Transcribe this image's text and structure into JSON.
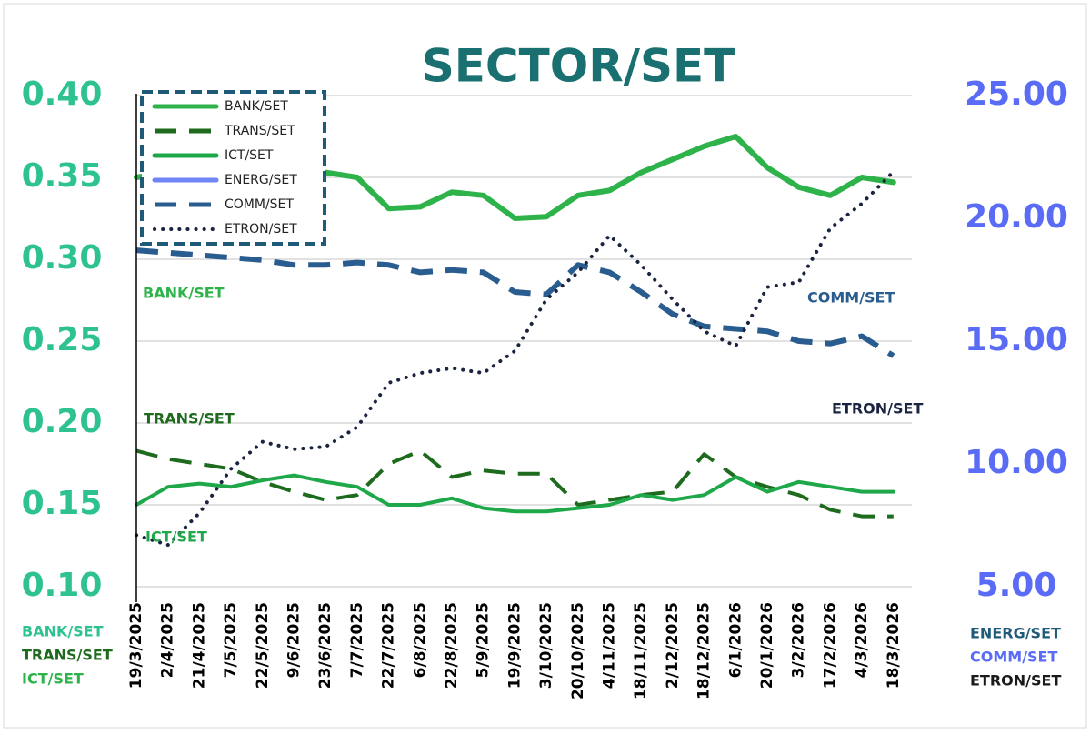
{
  "chart_data": {
    "type": "line",
    "title": "SECTOR/SET",
    "categories": [
      "19/3/2025",
      "2/4/2025",
      "21/4/2025",
      "7/5/2025",
      "22/5/2025",
      "9/6/2025",
      "23/6/2025",
      "7/7/2025",
      "22/7/2025",
      "6/8/2025",
      "22/8/2025",
      "5/9/2025",
      "19/9/2025",
      "3/10/2025",
      "20/10/2025",
      "4/11/2025",
      "18/11/2025",
      "2/12/2025",
      "18/12/2025",
      "6/1/2026",
      "20/1/2026",
      "3/2/2026",
      "17/2/2026",
      "4/3/2026",
      "18/3/2026"
    ],
    "ylim": [
      0.1,
      0.4
    ],
    "yticks": [
      {
        "value": 0.1,
        "label": "0.10"
      },
      {
        "value": 0.15,
        "label": "0.15"
      },
      {
        "value": 0.2,
        "label": "0.20"
      },
      {
        "value": 0.25,
        "label": "0.25"
      },
      {
        "value": 0.3,
        "label": "0.30"
      },
      {
        "value": 0.35,
        "label": "0.35"
      },
      {
        "value": 0.4,
        "label": "0.40"
      }
    ],
    "y2lim": [
      5,
      25
    ],
    "y2ticks": [
      {
        "value": 5,
        "label": "5.00"
      },
      {
        "value": 10,
        "label": "10.00"
      },
      {
        "value": 15,
        "label": "15.00"
      },
      {
        "value": 20,
        "label": "20.00"
      },
      {
        "value": 25,
        "label": "25.00"
      }
    ],
    "grid": true,
    "legend": "top-left",
    "series": [
      {
        "name": "BANK/SET",
        "color": "#2db34a",
        "line_style": "solid",
        "values": [
          0.35,
          0.353,
          0.355,
          0.357,
          0.353,
          0.352,
          0.353,
          0.35,
          0.331,
          0.332,
          0.341,
          0.339,
          0.325,
          0.326,
          0.339,
          0.342,
          0.353,
          0.361,
          0.369,
          0.375,
          0.356,
          0.344,
          0.339,
          0.35,
          0.347
        ]
      },
      {
        "name": "TRANS/SET",
        "color": "#1e6b1e",
        "line_style": "dashed",
        "values": [
          0.183,
          0.178,
          0.175,
          0.172,
          0.164,
          0.158,
          0.153,
          0.156,
          0.175,
          0.183,
          0.167,
          0.171,
          0.169,
          0.169,
          0.15,
          0.153,
          0.156,
          0.158,
          0.181,
          0.167,
          0.161,
          0.156,
          0.147,
          0.143,
          0.143
        ]
      },
      {
        "name": "ICT/SET",
        "color": "#1ea84a",
        "line_style": "solid",
        "values": [
          0.15,
          0.161,
          0.163,
          0.161,
          0.165,
          0.168,
          0.164,
          0.161,
          0.15,
          0.15,
          0.154,
          0.148,
          0.146,
          0.146,
          0.148,
          0.15,
          0.156,
          0.153,
          0.156,
          0.167,
          0.158,
          0.164,
          0.161,
          0.158,
          0.158
        ]
      },
      {
        "name": "ENERG/SET",
        "color": "#6f86f7",
        "line_style": "solid",
        "axis": "y2",
        "values": [
          null,
          null,
          null,
          null,
          null,
          null,
          null,
          null,
          null,
          null,
          null,
          null,
          null,
          null,
          null,
          null,
          null,
          null,
          null,
          null,
          null,
          null,
          null,
          null,
          null
        ]
      },
      {
        "name": "COMM/SET",
        "color": "#2a5d8f",
        "line_style": "dashed",
        "axis": "y2",
        "values": [
          18.7,
          18.6,
          18.5,
          18.4,
          18.3,
          18.1,
          18.1,
          18.2,
          18.1,
          17.8,
          17.9,
          17.8,
          17.0,
          16.9,
          18.1,
          17.8,
          17.0,
          16.1,
          15.6,
          15.5,
          15.4,
          15.0,
          14.9,
          15.2,
          14.4
        ]
      },
      {
        "name": "ETRON/SET",
        "color": "#1a2340",
        "line_style": "dotted",
        "axis": "y2",
        "values": [
          7.1,
          6.7,
          8.0,
          9.8,
          10.9,
          10.6,
          10.7,
          11.5,
          13.3,
          13.7,
          13.9,
          13.7,
          14.6,
          16.7,
          17.8,
          19.3,
          18.1,
          16.7,
          15.4,
          14.8,
          17.2,
          17.4,
          19.6,
          20.6,
          21.9
        ]
      }
    ]
  }
}
